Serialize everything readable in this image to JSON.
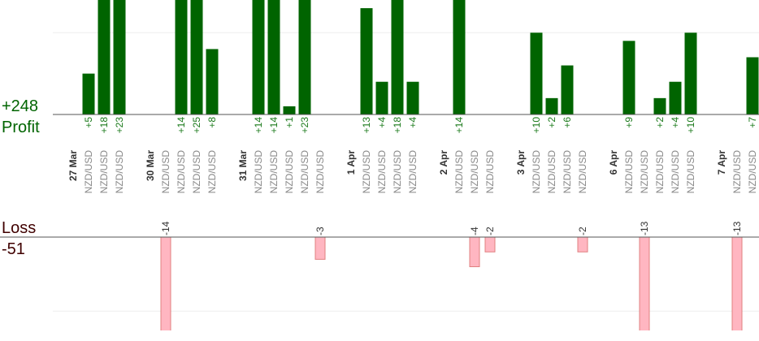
{
  "chart_data": {
    "type": "bar",
    "profit_label": "Profit",
    "profit_total": {
      "value": 248,
      "label": "+248"
    },
    "loss_label": "Loss",
    "loss_total": -51,
    "profit_ylim": [
      0,
      14
    ],
    "profit_gridlines": [
      10
    ],
    "loss_ylim": [
      -12.6,
      0
    ],
    "loss_gridlines": [
      -10
    ],
    "profit_color": "#006400",
    "loss_color": "#ffb6c1",
    "groups": [
      {
        "date": "27 Mar",
        "symbols": [
          "NZD/USD",
          "NZD/USD",
          "NZD/USD"
        ],
        "values": [
          5,
          18,
          23
        ],
        "value_labels": [
          "+5",
          "+18",
          "+23"
        ]
      },
      {
        "date": "30 Mar",
        "symbols": [
          "NZD/USD",
          "NZD/USD",
          "NZD/USD",
          "NZD/USD"
        ],
        "values": [
          -14,
          14,
          25,
          8
        ],
        "value_labels": [
          "-14",
          "+14",
          "+25",
          "+8"
        ]
      },
      {
        "date": "31 Mar",
        "symbols": [
          "NZD/USD",
          "NZD/USD",
          "NZD/USD",
          "NZD/USD",
          "NZD/USD"
        ],
        "values": [
          14,
          14,
          1,
          23,
          -3
        ],
        "value_labels": [
          "+14",
          "+14",
          "+1",
          "+23",
          "-3"
        ]
      },
      {
        "date": "1 Apr",
        "symbols": [
          "NZD/USD",
          "NZD/USD",
          "NZD/USD",
          "NZD/USD"
        ],
        "values": [
          13,
          4,
          18,
          4
        ],
        "value_labels": [
          "+13",
          "+4",
          "+18",
          "+4"
        ]
      },
      {
        "date": "2 Apr",
        "symbols": [
          "NZD/USD",
          "NZD/USD",
          "NZD/USD"
        ],
        "values": [
          14,
          -4,
          -2
        ],
        "value_labels": [
          "+14",
          "-4",
          "-2"
        ]
      },
      {
        "date": "3 Apr",
        "symbols": [
          "NZD/USD",
          "NZD/USD",
          "NZD/USD",
          "NZD/USD"
        ],
        "values": [
          10,
          2,
          6,
          -2
        ],
        "value_labels": [
          "+10",
          "+2",
          "+6",
          "-2"
        ]
      },
      {
        "date": "6 Apr",
        "symbols": [
          "NZD/USD",
          "NZD/USD",
          "NZD/USD",
          "NZD/USD",
          "NZD/USD"
        ],
        "values": [
          9,
          -13,
          2,
          4,
          10
        ],
        "value_labels": [
          "+9",
          "-13",
          "+2",
          "+4",
          "+10"
        ]
      },
      {
        "date": "7 Apr",
        "symbols": [
          "NZD/USD",
          "NZD/USD"
        ],
        "values": [
          -13,
          7
        ],
        "value_labels": [
          "-13",
          "+7"
        ]
      }
    ]
  }
}
